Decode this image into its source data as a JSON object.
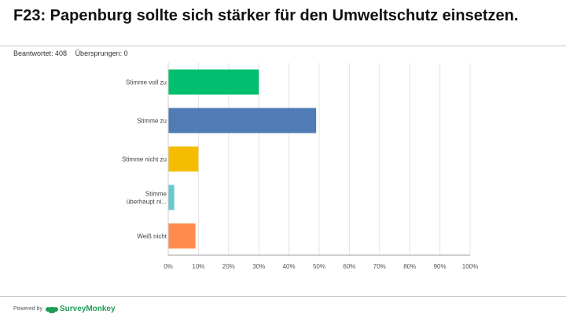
{
  "header": {
    "title": "F23: Papenburg sollte sich stärker für den Umweltschutz einsetzen.",
    "answered": "Beantwortet: 408",
    "skipped": "Übersprungen: 0"
  },
  "chart_data": {
    "type": "bar",
    "orientation": "horizontal",
    "title": "F23: Papenburg sollte sich stärker für den Umweltschutz einsetzen.",
    "categories": [
      "Stimme voll zu",
      "Stimme zu",
      "Stimme nicht zu",
      "Stimme überhaupt ni...",
      "Weiß nicht"
    ],
    "values": [
      30,
      49,
      10,
      2,
      9
    ],
    "colors": [
      "#00bf6f",
      "#507cb6",
      "#f6bd00",
      "#6bc8cd",
      "#ff8b4f"
    ],
    "xlim": [
      0,
      100
    ],
    "xticks": [
      "0%",
      "10%",
      "20%",
      "30%",
      "40%",
      "50%",
      "60%",
      "70%",
      "80%",
      "90%",
      "100%"
    ],
    "grid": true,
    "xlabel": "",
    "ylabel": ""
  },
  "footer": {
    "powered_by": "Powered by",
    "brand": "SurveyMonkey"
  }
}
